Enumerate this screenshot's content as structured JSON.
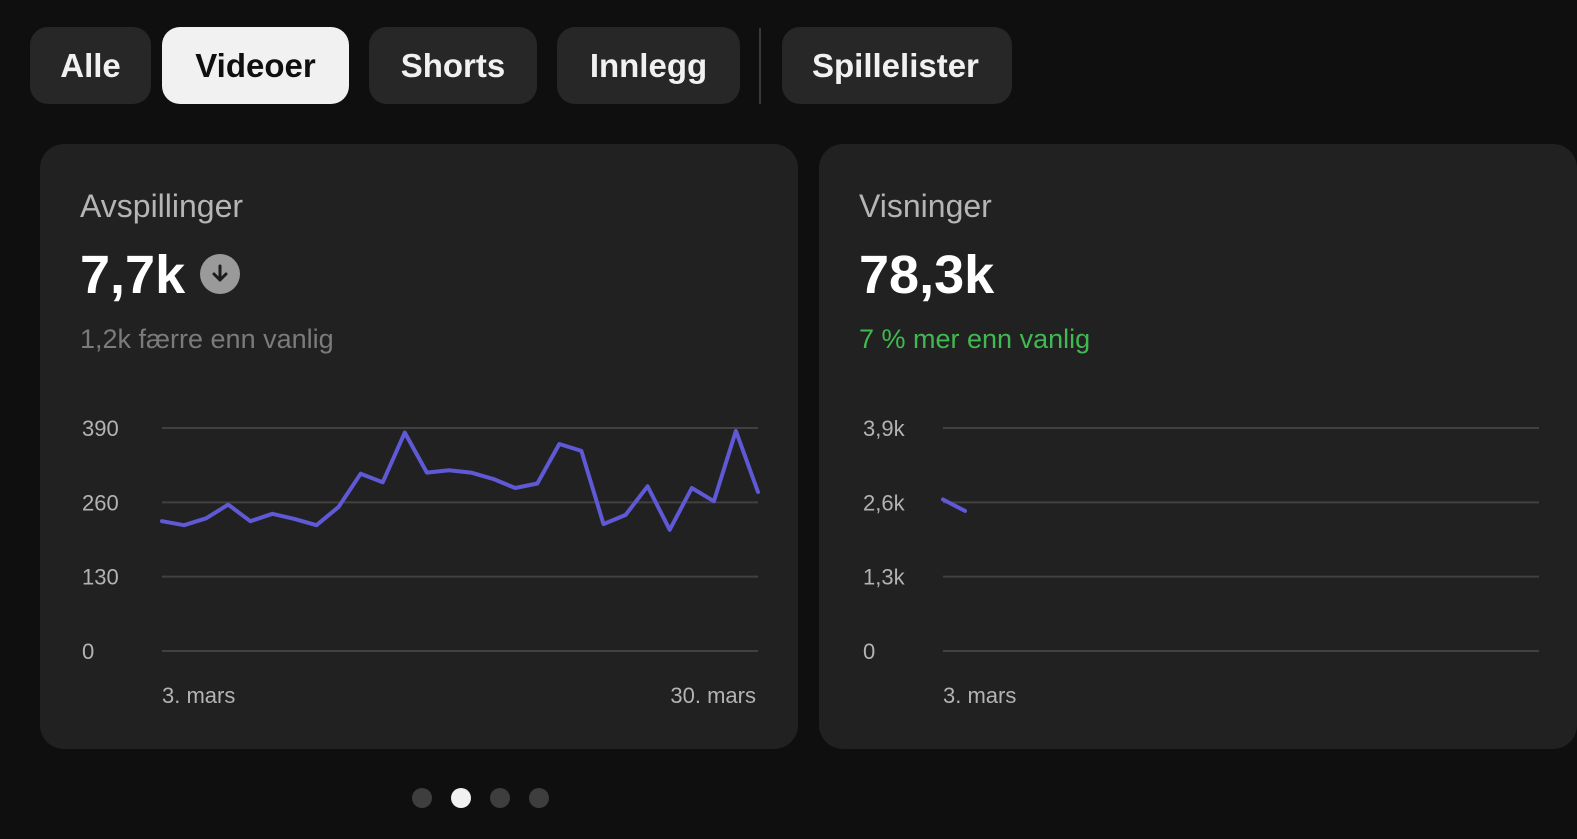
{
  "tabs": [
    {
      "label": "Alle",
      "active": false
    },
    {
      "label": "Videoer",
      "active": true
    },
    {
      "label": "Shorts",
      "active": false
    },
    {
      "label": "Innlegg",
      "active": false
    },
    {
      "label": "Spillelister",
      "active": false
    }
  ],
  "cards": [
    {
      "title": "Avspillinger",
      "value": "7,7k",
      "trend_icon": "arrow-down-icon",
      "comparison": "1,2k færre enn vanlig",
      "chart_data": {
        "type": "line",
        "title": "",
        "xlabel": "",
        "ylabel": "",
        "x_tick_labels": [
          "3. mars",
          "30. mars"
        ],
        "y_ticks": [
          0,
          130,
          260,
          390
        ],
        "y_tick_labels": [
          "0",
          "130",
          "260",
          "390"
        ],
        "ylim": [
          0,
          390
        ],
        "grid": true,
        "color": "#5f59d6",
        "series": [
          {
            "values": [
              227,
              220,
              232,
              256,
              227,
              240,
              231,
              220,
              252,
              310,
              295,
              382,
              312,
              316,
              312,
              301,
              285,
              293,
              362,
              350,
              222,
              238,
              288,
              212,
              285,
              262,
              385,
              278
            ]
          }
        ]
      }
    },
    {
      "title": "Visninger",
      "value": "78,3k",
      "comparison": "7 % mer enn vanlig",
      "chart_data": {
        "type": "line",
        "title": "",
        "xlabel": "",
        "ylabel": "",
        "x_tick_labels": [
          "3. mars"
        ],
        "y_ticks": [
          0,
          1300,
          2600,
          3900
        ],
        "y_tick_labels": [
          "0",
          "1,3k",
          "2,6k",
          "3,9k"
        ],
        "ylim": [
          0,
          3900
        ],
        "grid": true,
        "color": "#5f59d6",
        "series": [
          {
            "values": [
              2650,
              2450
            ]
          }
        ]
      }
    }
  ],
  "pagination": {
    "count": 4,
    "active": 1
  },
  "colors": {
    "background": "#0f0f0f",
    "card": "#212121",
    "accent": "#5f59d6",
    "positive": "#3fb950"
  }
}
